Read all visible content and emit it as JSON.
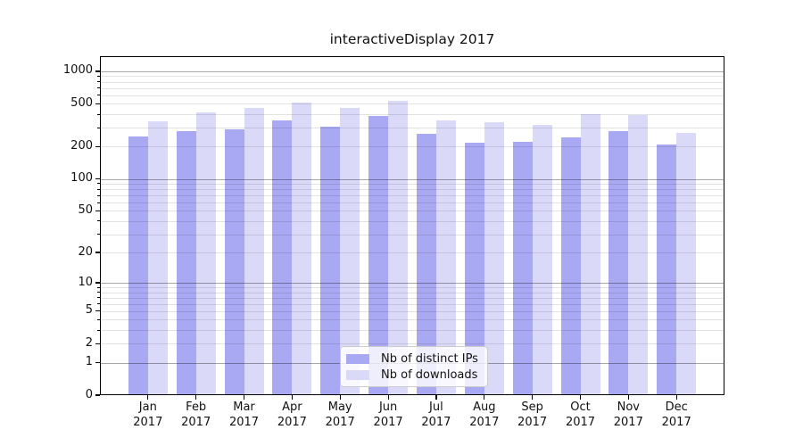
{
  "chart_data": {
    "type": "bar",
    "title": "interactiveDisplay 2017",
    "categories": [
      "Jan",
      "Feb",
      "Mar",
      "Apr",
      "May",
      "Jun",
      "Jul",
      "Aug",
      "Sep",
      "Oct",
      "Nov",
      "Dec"
    ],
    "category_year": "2017",
    "series": [
      {
        "name": "Nb of distinct IPs",
        "color": "#a9a9f3",
        "values": [
          248,
          279,
          291,
          353,
          307,
          388,
          261,
          216,
          222,
          245,
          279,
          209
        ]
      },
      {
        "name": "Nb of downloads",
        "color": "#dadaf8",
        "values": [
          341,
          413,
          457,
          517,
          457,
          536,
          349,
          340,
          317,
          398,
          393,
          270
        ]
      }
    ],
    "y_axis": {
      "scale": "log1p",
      "ticks": [
        0,
        1,
        2,
        5,
        10,
        20,
        50,
        100,
        200,
        500,
        1000
      ],
      "max": 1380,
      "major_gridlines": [
        1,
        10,
        100,
        1000
      ],
      "minor_gridlines": [
        2,
        3,
        4,
        5,
        6,
        7,
        8,
        9,
        20,
        30,
        40,
        50,
        60,
        70,
        80,
        90,
        200,
        300,
        400,
        500,
        600,
        700,
        800,
        900
      ]
    },
    "x_axis": {
      "lim": [
        -1,
        12
      ]
    },
    "legend": {
      "position": "lower center"
    },
    "grid": true
  }
}
